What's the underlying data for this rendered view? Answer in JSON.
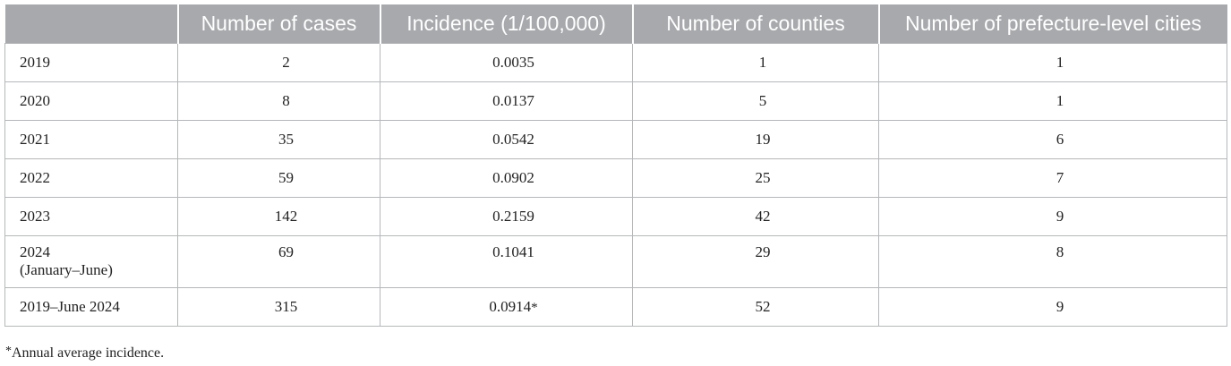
{
  "table": {
    "headers": [
      "",
      "Number of cases",
      "Incidence (1/100,000)",
      "Number of counties",
      "Number of prefecture-level cities"
    ],
    "rows": [
      {
        "year": "2019",
        "year_sub": "",
        "cases": "2",
        "incidence": "0.0035",
        "incidence_mark": "",
        "counties": "1",
        "cities": "1"
      },
      {
        "year": "2020",
        "year_sub": "",
        "cases": "8",
        "incidence": "0.0137",
        "incidence_mark": "",
        "counties": "5",
        "cities": "1"
      },
      {
        "year": "2021",
        "year_sub": "",
        "cases": "35",
        "incidence": "0.0542",
        "incidence_mark": "",
        "counties": "19",
        "cities": "6"
      },
      {
        "year": "2022",
        "year_sub": "",
        "cases": "59",
        "incidence": "0.0902",
        "incidence_mark": "",
        "counties": "25",
        "cities": "7"
      },
      {
        "year": "2023",
        "year_sub": "",
        "cases": "142",
        "incidence": "0.2159",
        "incidence_mark": "",
        "counties": "42",
        "cities": "9"
      },
      {
        "year": "2024",
        "year_sub": "(January–June)",
        "cases": "69",
        "incidence": "0.1041",
        "incidence_mark": "",
        "counties": "29",
        "cities": "8"
      },
      {
        "year": "2019–June 2024",
        "year_sub": "",
        "cases": "315",
        "incidence": "0.0914",
        "incidence_mark": "*",
        "counties": "52",
        "cities": "9"
      }
    ]
  },
  "footnote": {
    "mark": "*",
    "text": "Annual average incidence."
  }
}
